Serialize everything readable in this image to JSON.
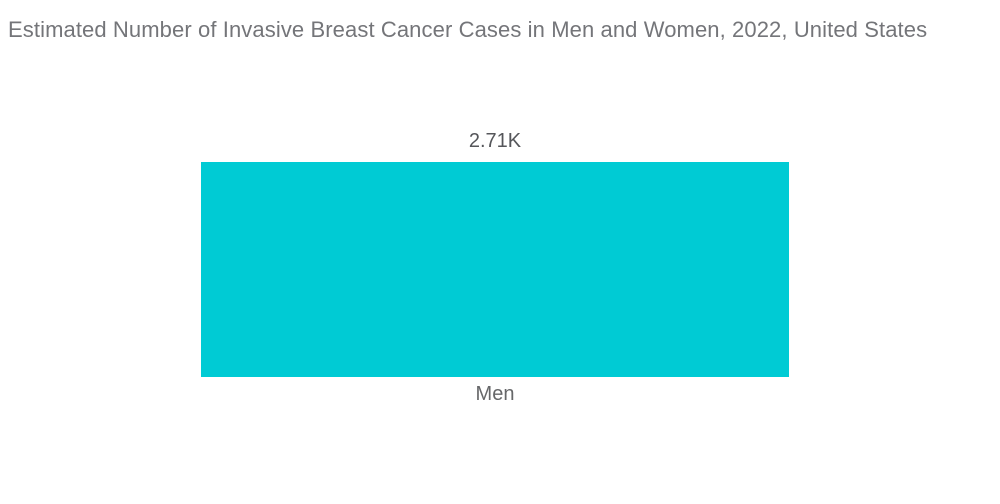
{
  "page": {
    "background": "#ffffff"
  },
  "chart_data": {
    "type": "bar",
    "title": "Estimated Number of Invasive Breast Cancer Cases in Men and Women, 2022, United States",
    "categories": [
      "Men"
    ],
    "values": [
      2710
    ],
    "value_labels": [
      "2.71K"
    ],
    "xlabel": "",
    "ylabel": "",
    "grid": false,
    "legend": "none",
    "axes_visible": false,
    "bar_color": "#00CBD4",
    "title_color": "#747579",
    "value_label_color": "#55565A",
    "category_label_color": "#666769"
  }
}
